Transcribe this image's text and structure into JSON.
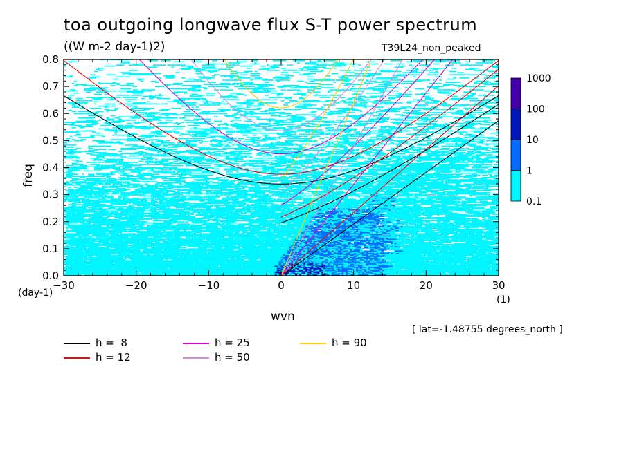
{
  "chart_data": {
    "type": "heatmap",
    "title": "toa outgoing longwave flux S-T power spectrum",
    "subtitle": "((W m-2 day-1)2)",
    "dataset_label": "T39L24_non_peaked",
    "xlabel": "wvn",
    "ylabel": "freq",
    "x_unit": "(1)",
    "y_unit": "(day-1)",
    "xlim": [
      -30,
      30
    ],
    "ylim": [
      0.0,
      0.8
    ],
    "x_ticks": [
      "-30",
      "-20",
      "-10",
      "0",
      "10",
      "20",
      "30"
    ],
    "y_ticks": [
      "0.0",
      "0.1",
      "0.2",
      "0.3",
      "0.4",
      "0.5",
      "0.6",
      "0.7",
      "0.8"
    ],
    "annotation": "[ lat=-1.48755 degrees_north ]",
    "colorbar": {
      "levels": [
        "1000",
        "100",
        "10",
        "1",
        "0.1"
      ],
      "colors": [
        "#4400aa",
        "#0018b8",
        "#0a6cff",
        "#00f5ff"
      ]
    },
    "dispersion_curves": [
      {
        "name": "h =  8",
        "h": 8,
        "color": "#000000"
      },
      {
        "name": "h = 12",
        "h": 12,
        "color": "#ff0000"
      },
      {
        "name": "h = 25",
        "h": 25,
        "color": "#dd00cc"
      },
      {
        "name": "h = 50",
        "h": 50,
        "color": "#dd88dd"
      },
      {
        "name": "h = 90",
        "h": 90,
        "color": "#ffcc00"
      }
    ]
  }
}
